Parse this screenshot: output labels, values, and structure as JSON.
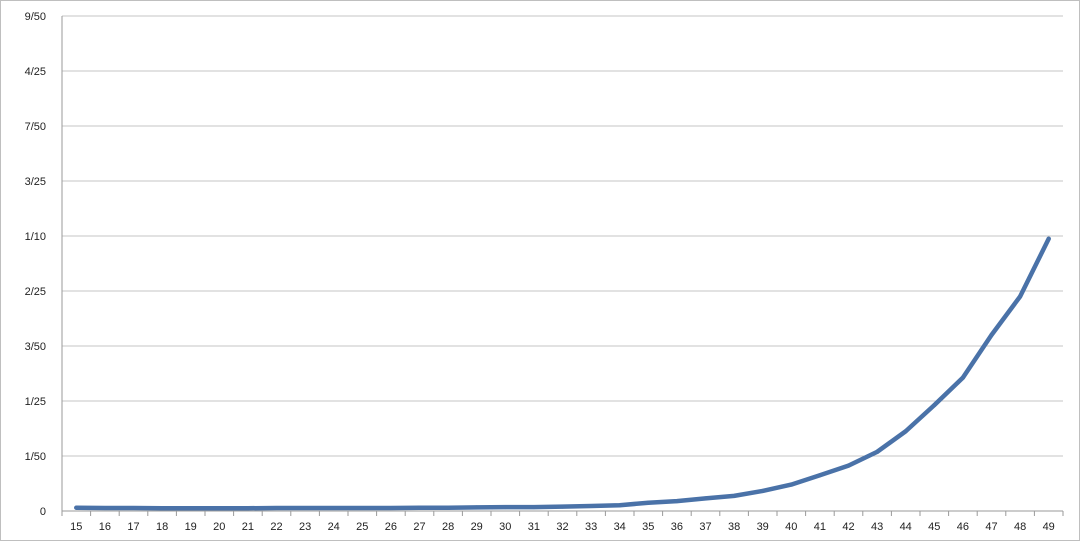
{
  "chart_data": {
    "type": "line",
    "title": "",
    "xlabel": "",
    "ylabel": "",
    "x": [
      15,
      16,
      17,
      18,
      19,
      20,
      21,
      22,
      23,
      24,
      25,
      26,
      27,
      28,
      29,
      30,
      31,
      32,
      33,
      34,
      35,
      36,
      37,
      38,
      39,
      40,
      41,
      42,
      43,
      44,
      45,
      46,
      47,
      48,
      49
    ],
    "series": [
      {
        "values": [
          0.0012,
          0.0011,
          0.0011,
          0.001,
          0.001,
          0.001,
          0.001,
          0.0011,
          0.0011,
          0.0011,
          0.0011,
          0.0011,
          0.0012,
          0.0012,
          0.0013,
          0.0014,
          0.0014,
          0.0016,
          0.0018,
          0.0021,
          0.003,
          0.0036,
          0.0046,
          0.0055,
          0.0073,
          0.0096,
          0.013,
          0.0165,
          0.0215,
          0.029,
          0.0385,
          0.0485,
          0.064,
          0.078,
          0.099
        ],
        "color": "#4a72a8"
      }
    ],
    "ylim": [
      0,
      0.18
    ],
    "y_ticks": [
      0,
      0.02,
      0.04,
      0.06,
      0.08,
      0.1,
      0.12,
      0.14,
      0.16,
      0.18
    ],
    "y_tick_labels": [
      "0",
      "1/50",
      "1/25",
      "3/50",
      "2/25",
      "1/10",
      "3/25",
      "7/50",
      "4/25",
      "9/50"
    ],
    "grid": true,
    "legend": "none"
  }
}
